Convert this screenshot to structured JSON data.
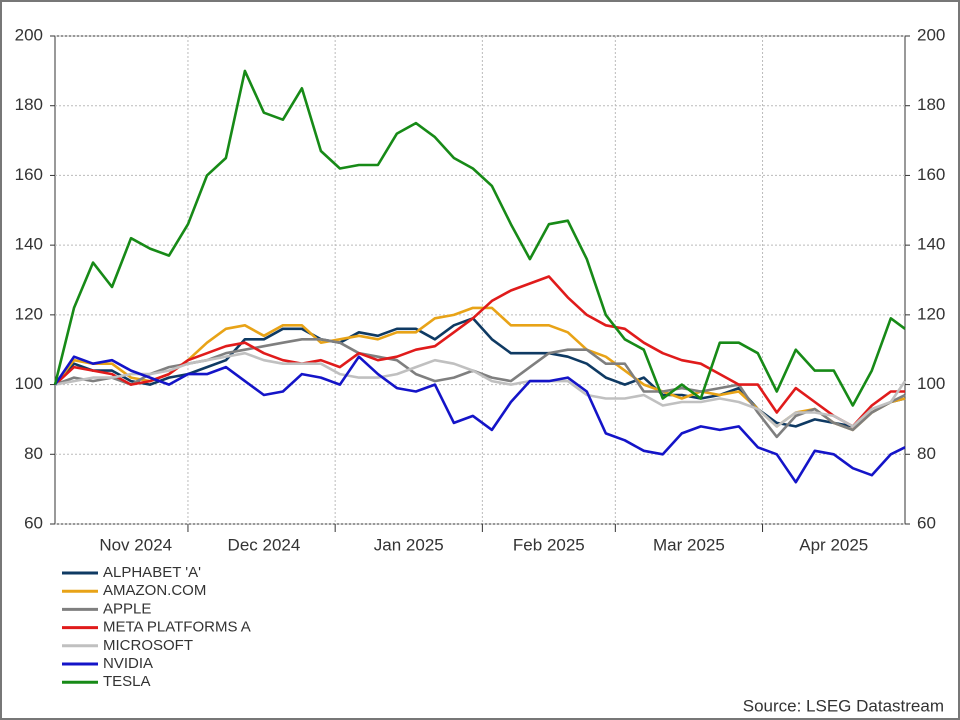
{
  "chart_data": {
    "type": "line",
    "x": [
      0,
      4,
      8,
      12,
      16,
      20,
      24,
      28,
      32,
      36,
      40,
      44,
      48,
      52,
      56,
      60,
      64,
      68,
      72,
      76,
      80,
      84,
      88,
      92,
      96,
      100,
      104,
      108,
      112,
      116,
      120,
      124,
      128,
      132,
      136,
      140,
      144,
      148,
      152,
      156,
      160,
      164,
      168,
      172,
      176,
      179
    ],
    "xlim": [
      0,
      179
    ],
    "xticks": [
      28,
      59,
      90,
      118,
      149
    ],
    "xtick_labels": [
      {
        "value": 17,
        "label": "Nov 2024"
      },
      {
        "value": 44,
        "label": "Dec 2024"
      },
      {
        "value": 74.5,
        "label": "Jan 2025"
      },
      {
        "value": 104,
        "label": "Feb 2025"
      },
      {
        "value": 133.5,
        "label": "Mar 2025"
      },
      {
        "value": 164,
        "label": "Apr 2025"
      }
    ],
    "ylim": [
      60,
      200
    ],
    "yticks": [
      60,
      80,
      100,
      120,
      140,
      160,
      180,
      200
    ],
    "y2lim": [
      60,
      200
    ],
    "y2ticks": [
      60,
      80,
      100,
      120,
      140,
      160,
      180,
      200
    ],
    "grid": true,
    "legend": "bottom-left",
    "source": "Source: LSEG Datastream",
    "series": [
      {
        "name": "ALPHABET 'A'",
        "color": "#0f3a63",
        "values": [
          100,
          106,
          104,
          104,
          101,
          100,
          102,
          103,
          105,
          107,
          113,
          113,
          116,
          116,
          113,
          112,
          115,
          114,
          116,
          116,
          113,
          117,
          119,
          113,
          109,
          109,
          109,
          108,
          106,
          102,
          100,
          102,
          97,
          97,
          96,
          97,
          99,
          93,
          89,
          88,
          90,
          89,
          88,
          92,
          95,
          96
        ]
      },
      {
        "name": "AMAZON.COM",
        "color": "#e8a317",
        "values": [
          100,
          107,
          106,
          106,
          102,
          101,
          103,
          107,
          112,
          116,
          117,
          114,
          117,
          117,
          112,
          113,
          114,
          113,
          115,
          115,
          119,
          120,
          122,
          122,
          117,
          117,
          117,
          115,
          110,
          108,
          104,
          100,
          98,
          96,
          98,
          97,
          98,
          93,
          88,
          92,
          93,
          89,
          87,
          92,
          95,
          96
        ]
      },
      {
        "name": "APPLE",
        "color": "#7f7f7f",
        "values": [
          100,
          102,
          101,
          102,
          100,
          103,
          105,
          106,
          107,
          109,
          110,
          111,
          112,
          113,
          113,
          112,
          109,
          108,
          107,
          103,
          101,
          102,
          104,
          102,
          101,
          105,
          109,
          110,
          110,
          106,
          106,
          98,
          98,
          99,
          98,
          99,
          100,
          92,
          85,
          91,
          93,
          89,
          87,
          92,
          95,
          97
        ]
      },
      {
        "name": "META PLATFORMS A",
        "color": "#e01b1b",
        "values": [
          100,
          105,
          104,
          103,
          100,
          101,
          103,
          107,
          109,
          111,
          112,
          109,
          107,
          106,
          107,
          105,
          109,
          107,
          108,
          110,
          111,
          115,
          119,
          124,
          127,
          129,
          131,
          125,
          120,
          117,
          116,
          112,
          109,
          107,
          106,
          103,
          100,
          100,
          92,
          99,
          95,
          91,
          88,
          94,
          98,
          98
        ]
      },
      {
        "name": "MICROSOFT",
        "color": "#c0c0c0",
        "values": [
          100,
          101,
          102,
          102,
          103,
          103,
          104,
          106,
          107,
          108,
          109,
          107,
          106,
          106,
          106,
          103,
          102,
          102,
          103,
          105,
          107,
          106,
          104,
          101,
          100,
          101,
          101,
          101,
          97,
          96,
          96,
          97,
          94,
          95,
          95,
          96,
          95,
          93,
          88,
          92,
          92,
          91,
          88,
          93,
          95,
          101
        ]
      },
      {
        "name": "NVIDIA",
        "color": "#1414c8",
        "values": [
          100,
          108,
          106,
          107,
          104,
          102,
          100,
          103,
          103,
          105,
          101,
          97,
          98,
          103,
          102,
          100,
          108,
          103,
          99,
          98,
          100,
          89,
          91,
          87,
          95,
          101,
          101,
          102,
          98,
          86,
          84,
          81,
          80,
          86,
          88,
          87,
          88,
          82,
          80,
          72,
          81,
          80,
          76,
          74,
          80,
          82
        ]
      },
      {
        "name": "TESLA",
        "color": "#178a17",
        "values": [
          100,
          122,
          135,
          128,
          142,
          139,
          137,
          146,
          160,
          165,
          190,
          178,
          176,
          185,
          167,
          162,
          163,
          163,
          172,
          175,
          171,
          165,
          162,
          157,
          146,
          136,
          146,
          147,
          136,
          120,
          113,
          110,
          96,
          100,
          96,
          112,
          112,
          109,
          98,
          110,
          104,
          104,
          94,
          104,
          119,
          116
        ]
      }
    ]
  }
}
